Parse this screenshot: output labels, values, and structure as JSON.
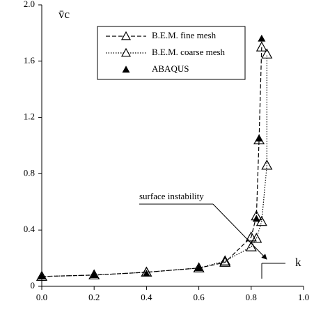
{
  "chart_data": {
    "type": "line",
    "x_label": "k",
    "y_label": "v̄c",
    "annotation": "surface instability",
    "series": [
      {
        "name": "B.E.M. fine mesh",
        "color": "#000000",
        "line_style": "dashed",
        "marker": "open",
        "x": [
          0,
          0.2,
          0.4,
          0.6,
          0.7,
          0.8,
          0.82,
          0.83,
          0.84
        ],
        "values": [
          0.07,
          0.08,
          0.1,
          0.13,
          0.17,
          0.35,
          0.5,
          1.04,
          1.7
        ]
      },
      {
        "name": "B.E.M. coarse mesh",
        "color": "#000000",
        "line_style": "dotted",
        "marker": "open",
        "x": [
          0,
          0.2,
          0.4,
          0.6,
          0.7,
          0.8,
          0.82,
          0.84,
          0.86,
          0.86
        ],
        "values": [
          0.07,
          0.08,
          0.1,
          0.13,
          0.18,
          0.28,
          0.34,
          0.46,
          0.86,
          1.65
        ]
      },
      {
        "name": "ABAQUS",
        "color": "#000000",
        "line_style": "none",
        "marker": "filled",
        "x": [
          0,
          0.2,
          0.4,
          0.6,
          0.82,
          0.83,
          0.84
        ],
        "values": [
          0.07,
          0.08,
          0.09,
          0.13,
          0.48,
          1.05,
          1.76
        ]
      }
    ],
    "xlim": [
      0,
      1
    ],
    "xticks": [
      {
        "value": 0,
        "label": "0.0"
      },
      0.2,
      0.4,
      0.6,
      0.8,
      {
        "value": 1,
        "label": "1.0"
      }
    ],
    "ylim": [
      0,
      2
    ],
    "yticks": [
      0,
      0.4,
      0.8,
      1.2,
      1.6,
      {
        "value": 2,
        "label": "2.0"
      }
    ]
  }
}
